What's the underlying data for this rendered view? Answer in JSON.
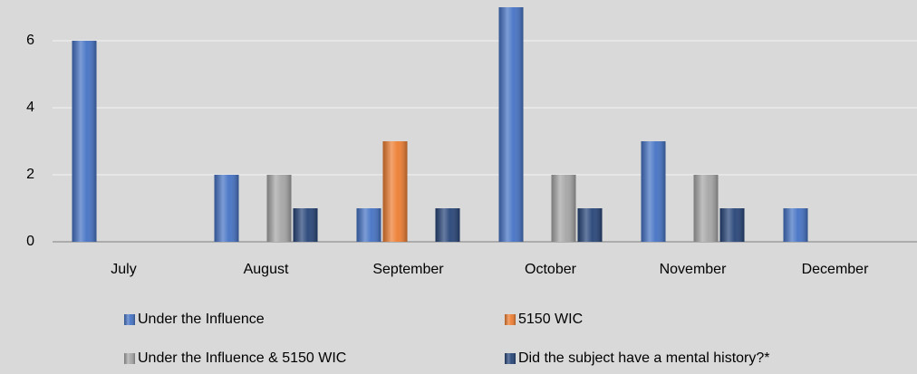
{
  "chart_data": {
    "type": "bar",
    "categories": [
      "July",
      "August",
      "September",
      "October",
      "November",
      "December"
    ],
    "series": [
      {
        "name": "Under the Influence",
        "color": "#4472c4",
        "values": [
          6,
          2,
          1,
          7,
          3,
          1
        ]
      },
      {
        "name": "5150 WIC",
        "color": "#ed7d31",
        "values": [
          0,
          0,
          3,
          0,
          0,
          0
        ]
      },
      {
        "name": "Under the Influence & 5150 WIC",
        "color": "#a5a5a5",
        "values": [
          0,
          2,
          0,
          2,
          2,
          0
        ]
      },
      {
        "name": "Did the subject have a mental history?*",
        "color": "#264478",
        "values": [
          0,
          1,
          1,
          1,
          1,
          0
        ]
      }
    ],
    "ylim": [
      0,
      7
    ],
    "yticks": [
      0,
      2,
      4,
      6
    ],
    "grid": true,
    "legend": "bottom"
  }
}
